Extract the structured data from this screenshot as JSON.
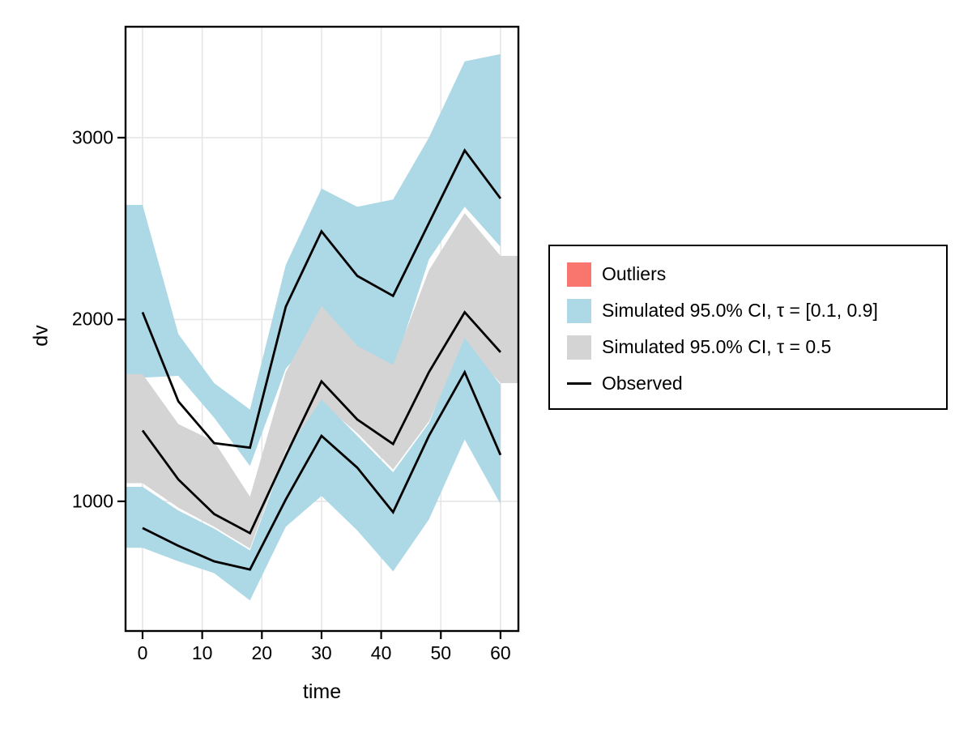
{
  "chart_data": {
    "type": "area",
    "title": "",
    "xlabel": "time",
    "ylabel": "dv",
    "x_ticks": [
      0,
      10,
      20,
      30,
      40,
      50,
      60
    ],
    "y_ticks": [
      1000,
      2000,
      3000
    ],
    "x_range": [
      -2.85,
      63.0
    ],
    "y_range": [
      287,
      3610
    ],
    "grid_on": true,
    "x": [
      0,
      6,
      12,
      18,
      24,
      30,
      36,
      42,
      48,
      54,
      60
    ],
    "bands": [
      {
        "name": "simulated-ci-upper-quantile-band",
        "legend": "Simulated 95.0% CI, τ = [0.1, 0.9]",
        "color": "#ADD8E6",
        "extend_left": true,
        "extend_right": false,
        "top": [
          2630,
          1920,
          1650,
          1505,
          2300,
          2720,
          2620,
          2660,
          3000,
          3420,
          3460
        ],
        "bottom": [
          1680,
          1690,
          1460,
          1195,
          1730,
          1950,
          1840,
          1720,
          2330,
          2620,
          2400
        ]
      },
      {
        "name": "simulated-ci-median-band",
        "legend": "Simulated 95.0% CI, τ = 0.5",
        "color": "#D4D4D4",
        "extend_left": true,
        "extend_right": true,
        "top": [
          1700,
          1425,
          1330,
          1025,
          1710,
          2075,
          1855,
          1750,
          2270,
          2585,
          2350
        ],
        "bottom": [
          1100,
          965,
          860,
          740,
          1280,
          1543,
          1375,
          1175,
          1440,
          1860,
          1650
        ]
      },
      {
        "name": "simulated-ci-lower-quantile-band",
        "legend": "Simulated 95.0% CI, τ = [0.1, 0.9]",
        "color": "#ADD8E6",
        "extend_left": true,
        "extend_right": false,
        "top": [
          1080,
          950,
          850,
          730,
          1270,
          1560,
          1360,
          1160,
          1430,
          1900,
          1640
        ],
        "bottom": [
          745,
          670,
          605,
          455,
          860,
          1030,
          840,
          615,
          900,
          1340,
          985
        ]
      }
    ],
    "lines": [
      {
        "name": "observed-upper-quantile",
        "color": "#000000",
        "values": [
          2040,
          1550,
          1320,
          1295,
          2070,
          2485,
          2240,
          2130,
          2530,
          2930,
          2665
        ]
      },
      {
        "name": "observed-median",
        "color": "#000000",
        "values": [
          1390,
          1120,
          930,
          825,
          1250,
          1660,
          1450,
          1315,
          1710,
          2040,
          1820
        ]
      },
      {
        "name": "observed-lower-quantile",
        "color": "#000000",
        "values": [
          853,
          755,
          670,
          625,
          1010,
          1360,
          1185,
          940,
          1360,
          1710,
          1255
        ]
      }
    ],
    "colors": {
      "grid": "#E6E6E6",
      "frame": "#000000",
      "background": "#FFFFFF"
    }
  },
  "legend": {
    "items": [
      {
        "label": "Outliers",
        "type": "swatch",
        "color": "#F8766D"
      },
      {
        "label": "Simulated 95.0% CI, τ = [0.1, 0.9]",
        "type": "swatch",
        "color": "#ADD8E6"
      },
      {
        "label": "Simulated 95.0% CI, τ = 0.5",
        "type": "swatch",
        "color": "#D4D4D4"
      },
      {
        "label": "Observed",
        "type": "line",
        "color": "#000000"
      }
    ]
  }
}
